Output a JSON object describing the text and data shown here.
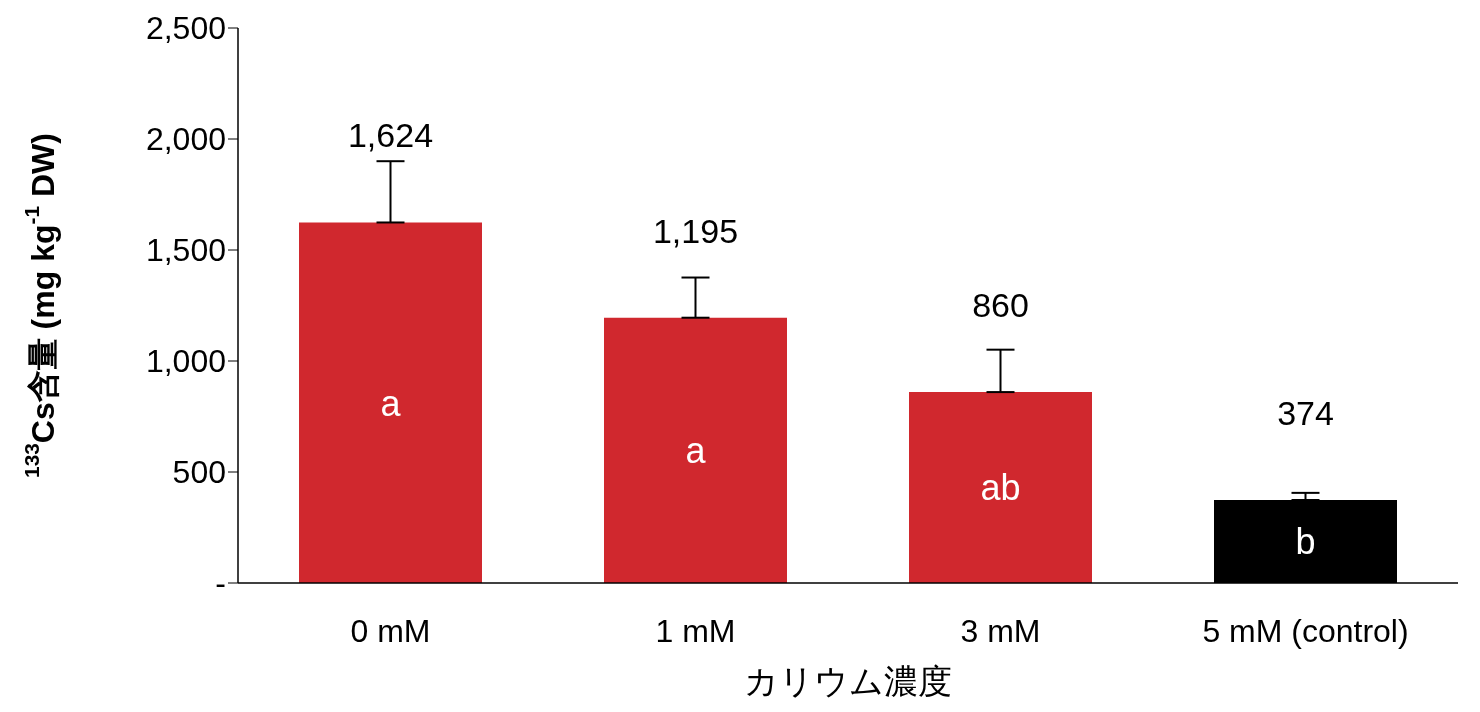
{
  "chart_data": {
    "type": "bar",
    "xlabel": "カリウム濃度",
    "ylabel": "$^{133}$Cs含量 (mg kg$^{-1}$ DW)",
    "categories": [
      "0 mM",
      "1 mM",
      "3 mM",
      "5 mM (control)"
    ],
    "values": [
      1624,
      1195,
      860,
      374
    ],
    "colors": [
      "#d0282e",
      "#d0282e",
      "#d0282e",
      "#000000"
    ],
    "errors": [
      [
        1624,
        1900
      ],
      [
        1195,
        1376
      ],
      [
        860,
        1051
      ],
      [
        374,
        406
      ]
    ],
    "value_labels": [
      "1,624",
      "1,195",
      "860",
      "374"
    ],
    "ylim": [
      0,
      2500
    ],
    "yticks": [
      {
        "value": 0,
        "label": "-"
      },
      500,
      {
        "value": 1000,
        "label": "1,000"
      },
      {
        "value": 1500,
        "label": "1,500"
      },
      {
        "value": 2000,
        "label": "2,000"
      },
      {
        "value": 2500,
        "label": "2,500"
      }
    ],
    "grid": false,
    "legend": false,
    "annotations": [
      "a",
      "a",
      "ab",
      "b"
    ]
  }
}
